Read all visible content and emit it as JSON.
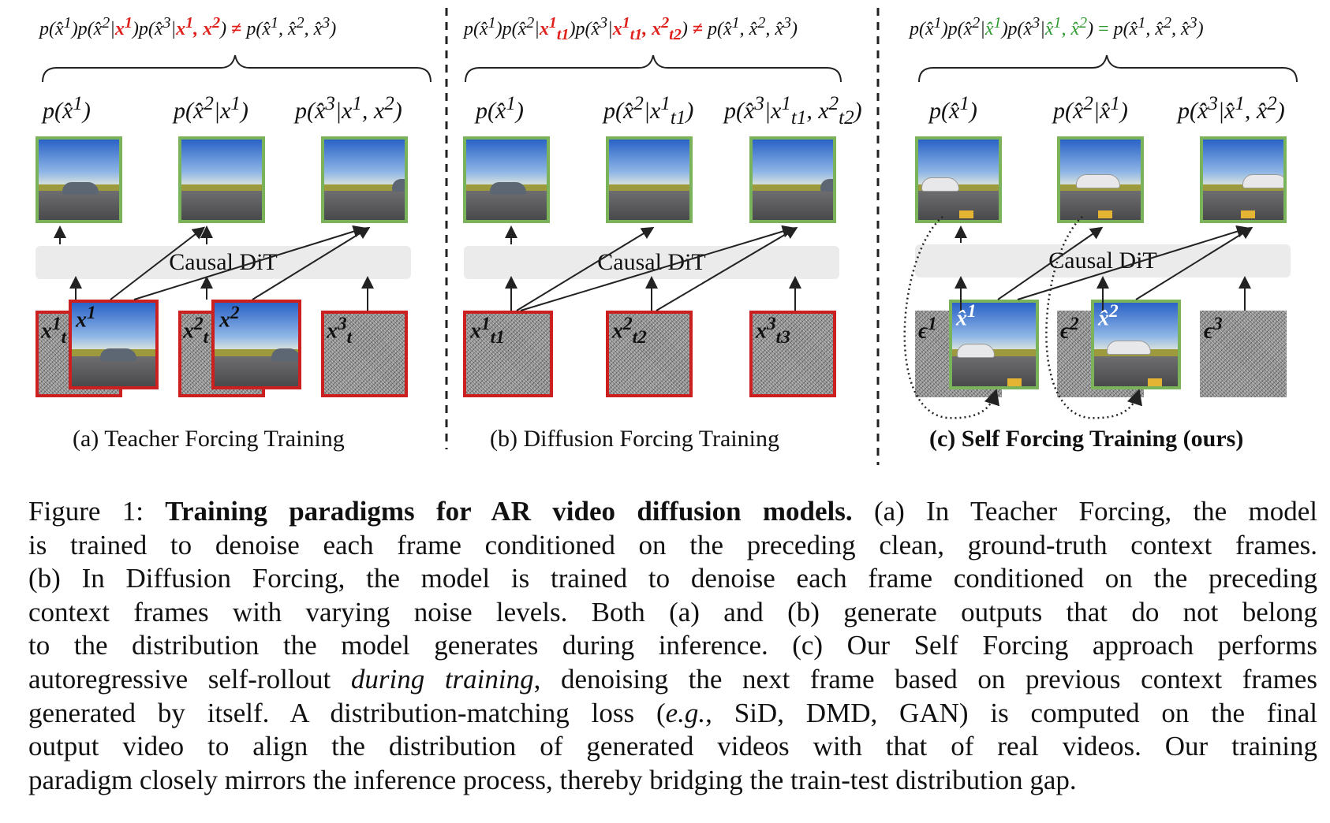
{
  "panels": [
    {
      "id": "a",
      "equation_html": "p(x̂<sup>1</sup>)p(x̂<sup>2</sup>|<span class='r'>x<sup>1</sup></span>)p(x̂<sup>3</sup>|<span class='r'>x<sup>1</sup>, x<sup>2</sup></span>) <span class='r n'>≠</span> p(x̂<sup>1</sup>, x̂<sup>2</sup>, x̂<sup>3</sup>)",
      "labels_html": [
        "p(x̂<sup>1</sup>)",
        "p(x̂<sup>2</sup>|x<sup>1</sup>)",
        "p(x̂<sup>3</sup>|x<sup>1</sup>, x<sup>2</sup>)"
      ],
      "dit_label": "Causal DiT",
      "caption": "(a) Teacher Forcing Training"
    },
    {
      "id": "b",
      "equation_html": "p(x̂<sup>1</sup>)p(x̂<sup>2</sup>|<span class='r'>x<sup>1</sup><sub>t1</sub></span>)p(x̂<sup>3</sup>|<span class='r'>x<sup>1</sup><sub>t1</sub>, x<sup>2</sup><sub>t2</sub></span>) <span class='r n'>≠</span> p(x̂<sup>1</sup>, x̂<sup>2</sup>, x̂<sup>3</sup>)",
      "labels_html": [
        "p(x̂<sup>1</sup>)",
        "p(x̂<sup>2</sup>|x<sup>1</sup><sub>t1</sub>)",
        "p(x̂<sup>3</sup>|x<sup>1</sup><sub>t1</sub>, x<sup>2</sup><sub>t2</sub>)"
      ],
      "dit_label": "Causal DiT",
      "caption": "(b) Diffusion Forcing Training"
    },
    {
      "id": "c",
      "equation_html": "p(x̂<sup>1</sup>)p(x̂<sup>2</sup>|<span class='g'>x̂<sup>1</sup></span>)p(x̂<sup>3</sup>|<span class='g'>x̂<sup>1</sup>, x̂<sup>2</sup></span>) <span class='g n'>=</span> p(x̂<sup>1</sup>, x̂<sup>2</sup>, x̂<sup>3</sup>)",
      "labels_html": [
        "p(x̂<sup>1</sup>)",
        "p(x̂<sup>2</sup>|x̂<sup>1</sup>)",
        "p(x̂<sup>3</sup>|x̂<sup>1</sup>, x̂<sup>2</sup>)"
      ],
      "dit_label": "Causal DiT",
      "caption": "(c) Self Forcing Training (ours)"
    }
  ],
  "inputs": {
    "a": [
      "x<sup>1</sup><sub>t</sub>",
      "x<sup>1</sup>",
      "x<sup>2</sup><sub>t</sub>",
      "x<sup>2</sup>",
      "x<sup>3</sup><sub>t</sub>"
    ],
    "b": [
      "x<sup>1</sup><sub>t1</sub>",
      "x<sup>2</sup><sub>t2</sub>",
      "x<sup>3</sup><sub>t3</sub>"
    ],
    "c": [
      "ϵ<sup>1</sup>",
      "x̂<sup>1</sup>",
      "ϵ<sup>2</sup>",
      "x̂<sup>2</sup>",
      "ϵ<sup>3</sup>"
    ]
  },
  "figure_caption": {
    "lines_html": [
      "Figure 1: <b>Training paradigms for AR video diffusion models.</b> (a) In Teacher Forcing, the model",
      "is trained to denoise each frame conditioned on the preceding clean, ground-truth context frames.",
      "(b) In Diffusion Forcing, the model is trained to denoise each frame conditioned on the preceding",
      "context frames with varying noise levels. Both (a) and (b) generate outputs that do not belong",
      "to the distribution the model generates during inference. (c) Our Self Forcing approach performs",
      "autoregressive self-rollout <i>during training</i>, denoising the next frame based on previous context frames",
      "generated by itself. A distribution-matching loss (<i>e.g.</i>, SiD, DMD, GAN) is computed on the final",
      "output video to align the distribution of generated videos with that of real videos. Our training",
      "paradigm closely mirrors the inference process, thereby bridging the train-test distribution gap."
    ]
  },
  "colors": {
    "mismatch": "#e0201b",
    "match": "#2e9a2e",
    "frame_green": "#7ab35a",
    "frame_red": "#cc1f1f"
  }
}
